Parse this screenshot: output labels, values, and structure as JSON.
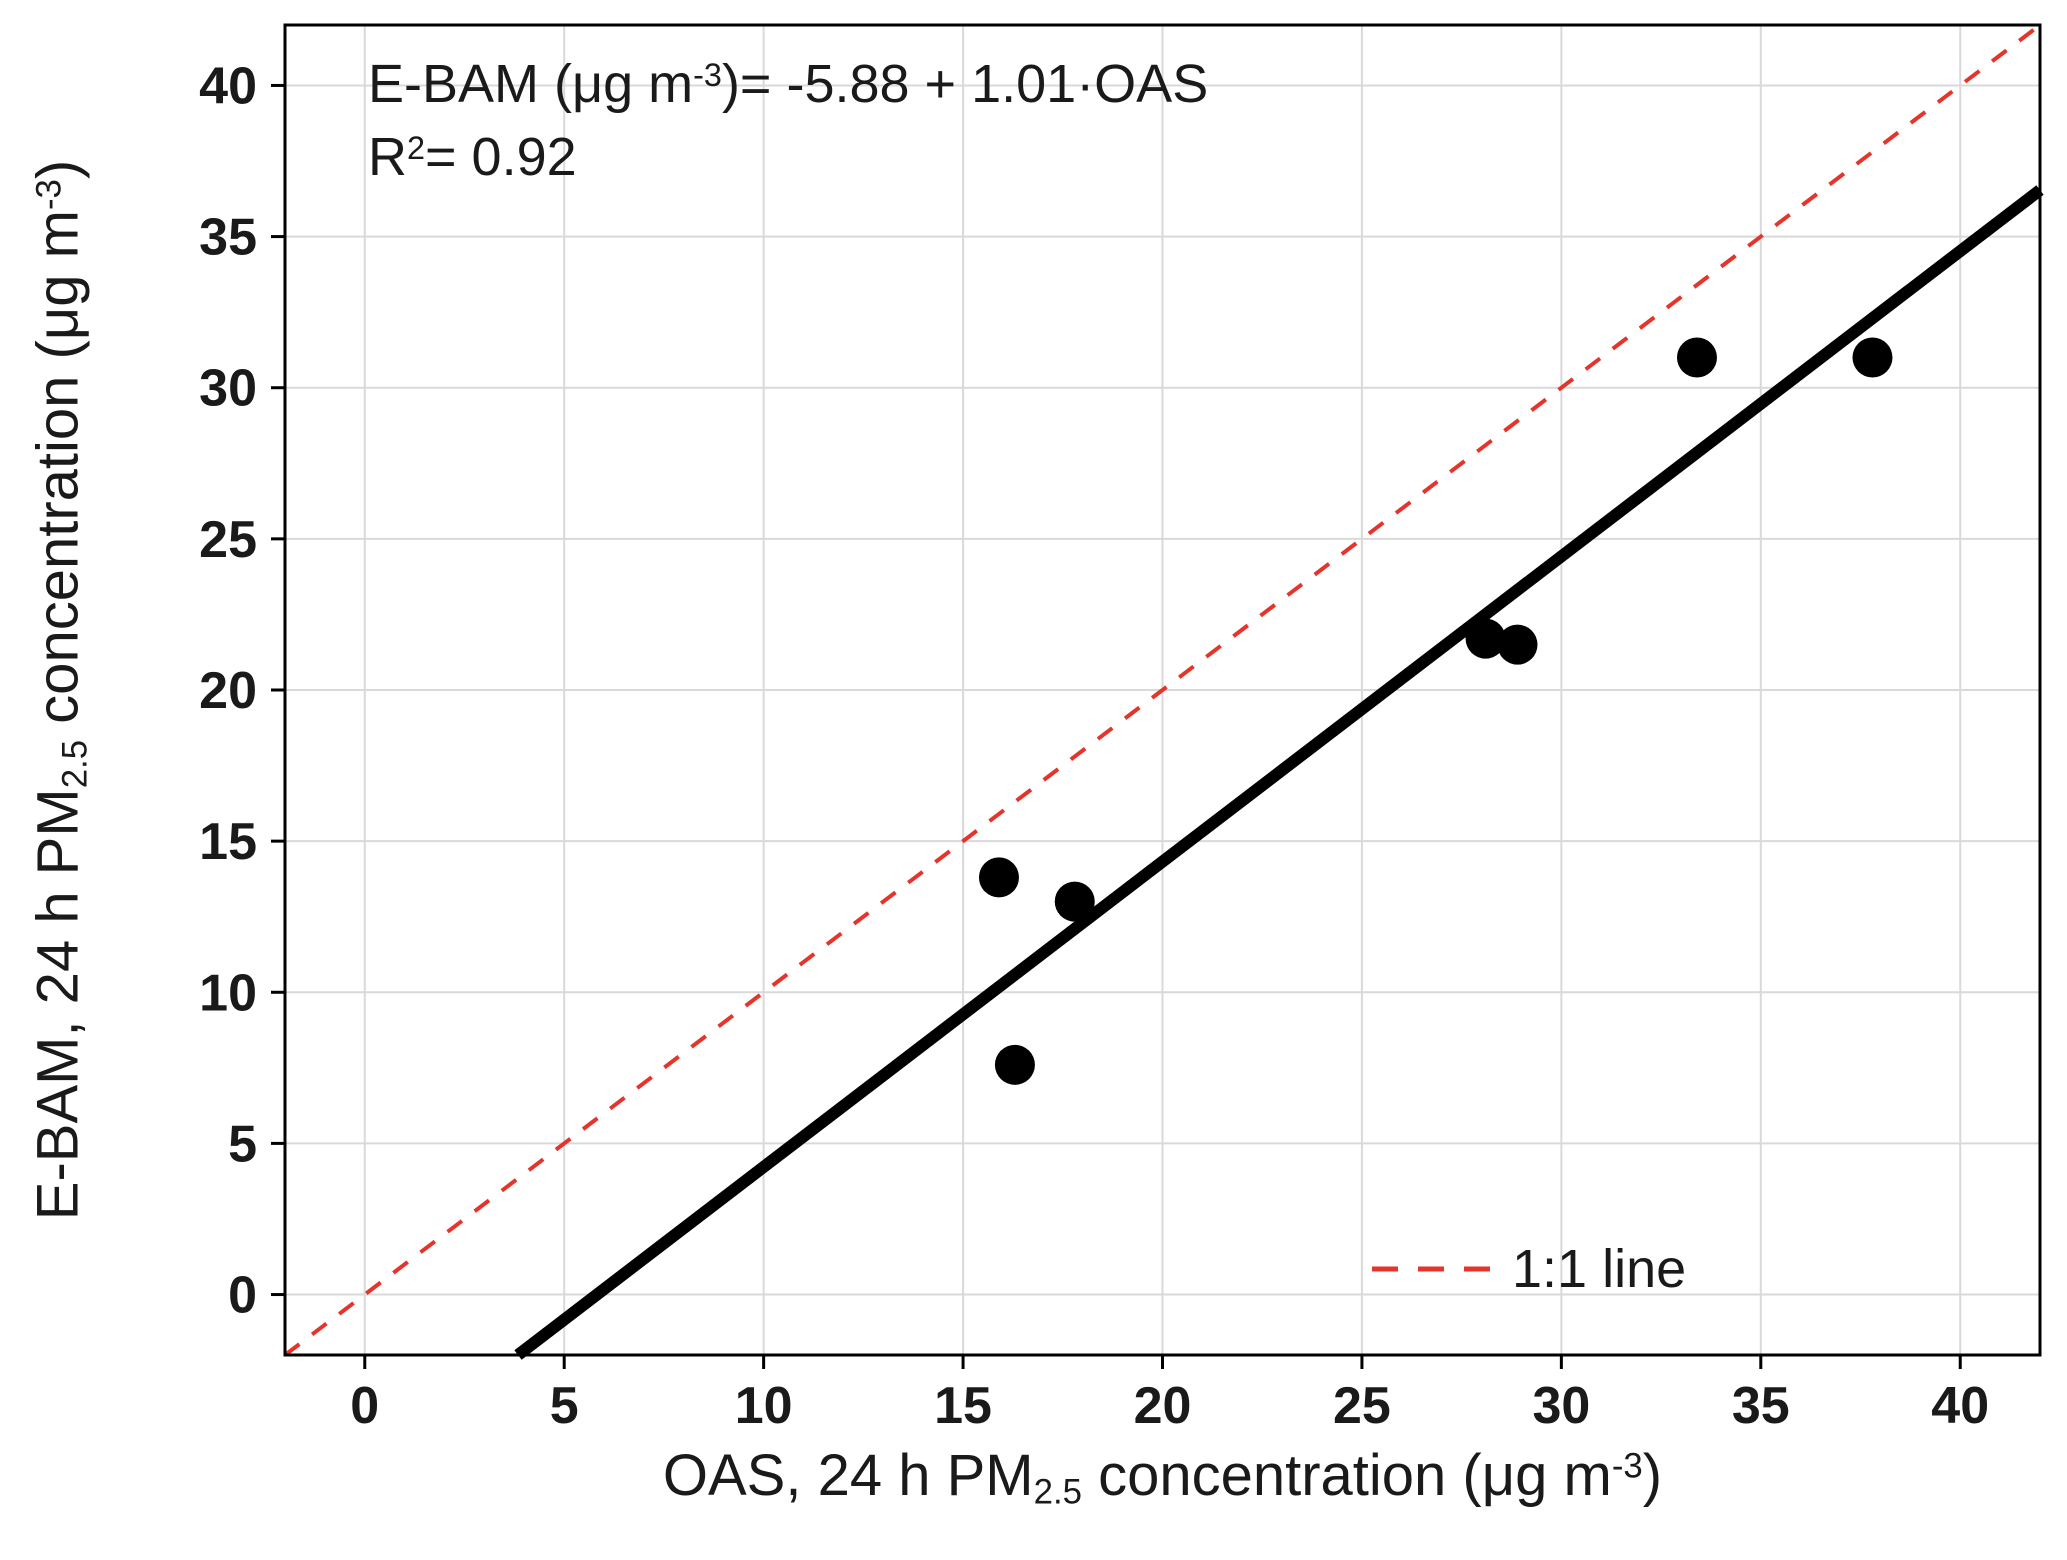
{
  "chart_data": {
    "type": "scatter",
    "title": "",
    "xlabel_segments": [
      {
        "t": "OAS, 24 h  PM"
      },
      {
        "t": "2.5",
        "s": "sub"
      },
      {
        "t": " concentration (μg  m"
      },
      {
        "t": "-3",
        "s": "sup"
      },
      {
        "t": ")"
      }
    ],
    "ylabel_segments": [
      {
        "t": "E-BAM, 24 h PM"
      },
      {
        "t": "2.5",
        "s": "sub"
      },
      {
        "t": " concentration (μg  m"
      },
      {
        "t": "-3",
        "s": "sup"
      },
      {
        "t": ")"
      }
    ],
    "xlim": [
      -2,
      42
    ],
    "ylim": [
      -2,
      42
    ],
    "x_ticks": [
      0,
      5,
      10,
      15,
      20,
      25,
      30,
      35,
      40
    ],
    "y_ticks": [
      0,
      5,
      10,
      15,
      20,
      25,
      30,
      35,
      40
    ],
    "grid": true,
    "points": [
      [
        15.9,
        13.8
      ],
      [
        17.8,
        13.0
      ],
      [
        16.3,
        7.6
      ],
      [
        28.1,
        21.7
      ],
      [
        28.9,
        21.5
      ],
      [
        33.4,
        31.0
      ],
      [
        37.8,
        31.0
      ]
    ],
    "regression": {
      "slope": 1.01,
      "intercept": -5.88,
      "r_squared": 0.92,
      "equation_segments": [
        {
          "t": "E-BAM (μg  m"
        },
        {
          "t": "-3",
          "s": "sup"
        },
        {
          "t": ")= -5.88 + 1.01·OAS"
        }
      ],
      "r2_segments": [
        {
          "t": "R"
        },
        {
          "t": "2",
          "s": "sup"
        },
        {
          "t": "= 0.92"
        }
      ]
    },
    "one_to_one": {
      "label": "1:1 line",
      "color": "#e5342b",
      "dashed": true
    },
    "colors": {
      "points": "#000000",
      "fit_line": "#000000",
      "grid": "#d9d9d9",
      "axis": "#000000",
      "text": "#1a1a1a"
    },
    "legend_position": "lower right"
  },
  "legend": {
    "label": "1:1 line"
  }
}
